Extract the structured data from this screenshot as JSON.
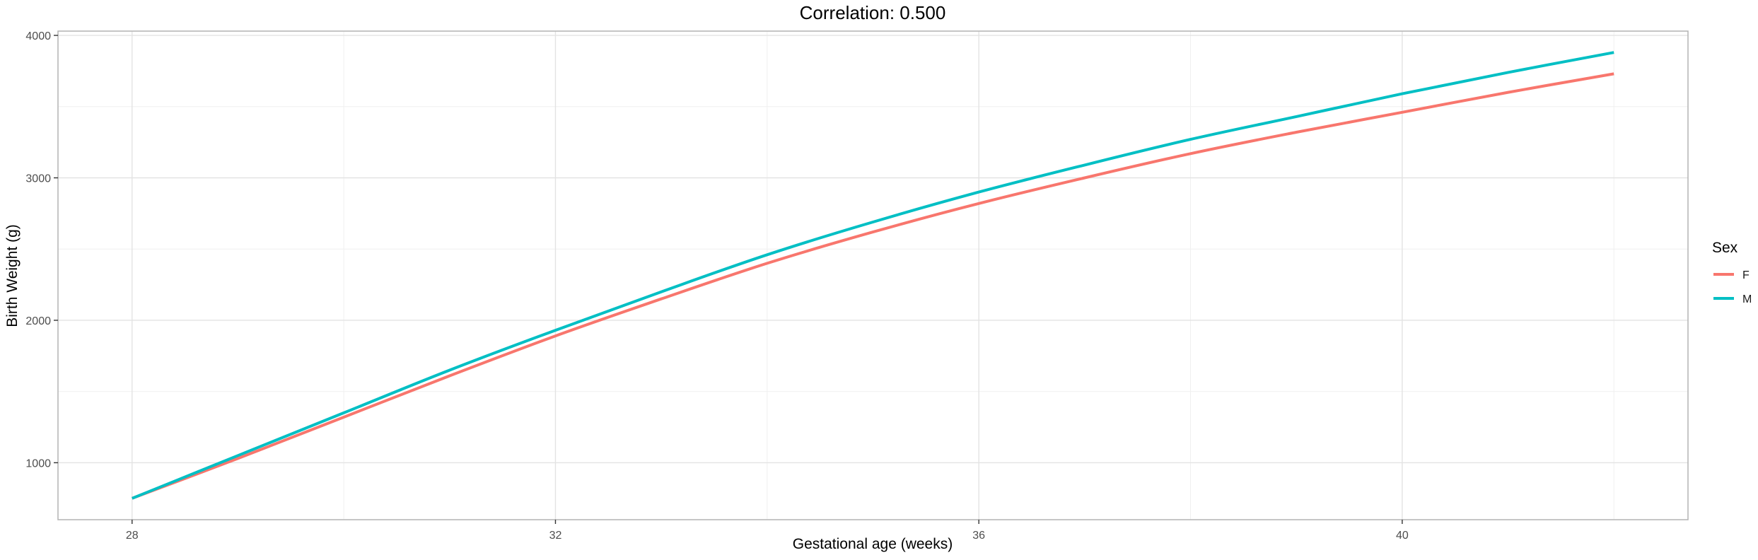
{
  "chart_data": {
    "type": "line",
    "title": "Correlation: 0.500",
    "xlabel": "Gestational age (weeks)",
    "ylabel": "Birth Weight (g)",
    "xlim": [
      27.3,
      42.7
    ],
    "ylim": [
      600,
      4030
    ],
    "x_ticks": [
      28,
      32,
      36,
      40
    ],
    "x_minor_ticks": [
      30,
      34,
      38,
      42
    ],
    "y_ticks": [
      1000,
      2000,
      3000,
      4000
    ],
    "y_minor_ticks": [
      1500,
      2500,
      3500
    ],
    "grid": true,
    "legend": {
      "title": "Sex",
      "position": "right"
    },
    "series": [
      {
        "name": "F",
        "color": "#F8766D",
        "x": [
          28,
          29,
          30,
          31,
          32,
          33,
          34,
          35,
          36,
          37,
          38,
          39,
          40,
          41,
          42
        ],
        "y": [
          750,
          1030,
          1320,
          1610,
          1890,
          2150,
          2400,
          2620,
          2820,
          3000,
          3170,
          3320,
          3460,
          3600,
          3730
        ]
      },
      {
        "name": "M",
        "color": "#00BFC4",
        "x": [
          28,
          29,
          30,
          31,
          32,
          33,
          34,
          35,
          36,
          37,
          38,
          39,
          40,
          41,
          42
        ],
        "y": [
          750,
          1050,
          1350,
          1650,
          1930,
          2200,
          2460,
          2690,
          2900,
          3090,
          3270,
          3430,
          3590,
          3740,
          3880
        ]
      }
    ]
  }
}
